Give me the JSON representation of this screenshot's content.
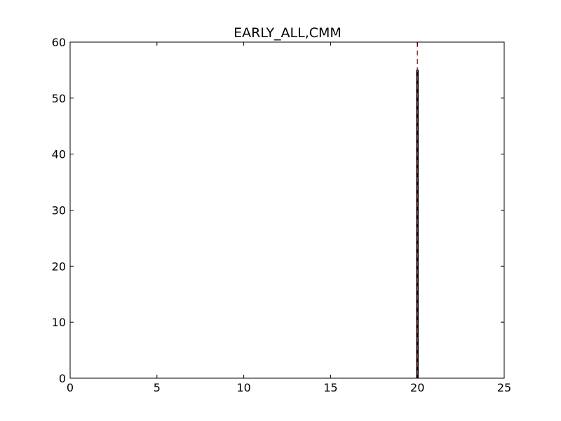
{
  "chart_data": {
    "type": "bar",
    "title": "EARLY_ALL,CMM",
    "xlabel": "",
    "ylabel": "",
    "xlim": [
      0,
      25
    ],
    "ylim": [
      0,
      60
    ],
    "x_ticks": [
      "0",
      "5",
      "10",
      "15",
      "20",
      "25"
    ],
    "y_ticks": [
      "0",
      "10",
      "20",
      "30",
      "40",
      "50",
      "60"
    ],
    "grid": false,
    "bars": [
      {
        "x_start": 19.95,
        "x_end": 20.05,
        "value": 55
      }
    ],
    "baseline_segment": {
      "x_start": 19.55,
      "x_end": 20.45,
      "value": 0
    },
    "reference_line": {
      "x": 20,
      "color": "#ff0000",
      "style": "dashed"
    },
    "colors": {
      "bar_edge": "#000000",
      "bar_fill": "#000000",
      "reference": "#ff0000",
      "axes": "#000000"
    }
  }
}
